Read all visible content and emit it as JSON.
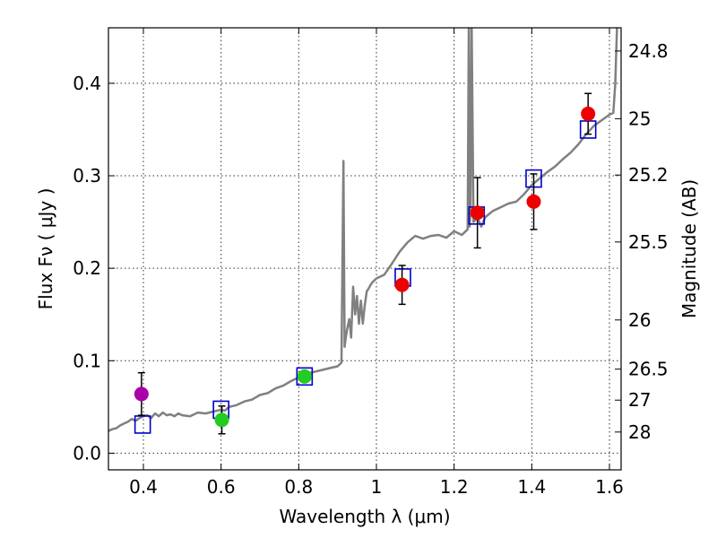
{
  "chart_data": {
    "type": "scatter",
    "title": "",
    "xlabel": "Wavelength  λ (μm)",
    "ylabel": "Flux  Fν  ( μJy )",
    "ylabel_right": "Magnitude (AB)",
    "xlim": [
      0.31,
      1.63
    ],
    "ylim": [
      -0.018,
      0.46
    ],
    "grid": true,
    "x_ticks": [
      0.4,
      0.6,
      0.8,
      1.0,
      1.2,
      1.4,
      1.6
    ],
    "x_tick_labels": [
      "0.4",
      "0.6",
      "0.8",
      "1",
      "1.2",
      "1.4",
      "1.6"
    ],
    "y_ticks": [
      0.0,
      0.1,
      0.2,
      0.3,
      0.4
    ],
    "y_tick_labels": [
      "0.0",
      "0.1",
      "0.2",
      "0.3",
      "0.4"
    ],
    "right_ticks": [
      {
        "label": "24.8",
        "flux": 0.4349
      },
      {
        "label": "25",
        "flux": 0.3617
      },
      {
        "label": "25.2",
        "flux": 0.3008
      },
      {
        "label": "25.5",
        "flux": 0.2284
      },
      {
        "label": "26",
        "flux": 0.1441
      },
      {
        "label": "26.5",
        "flux": 0.0909
      },
      {
        "label": "27",
        "flux": 0.0574
      },
      {
        "label": "28",
        "flux": 0.0229
      }
    ],
    "colors": {
      "sed": "#808080",
      "model": "#0000cc",
      "observed_red": "#ee0000",
      "observed_green": "#22cc22",
      "observed_purple": "#aa00aa",
      "errorbar": "#000000"
    },
    "sed_spectrum": {
      "x": [
        0.31,
        0.32,
        0.33,
        0.34,
        0.35,
        0.36,
        0.37,
        0.38,
        0.39,
        0.4,
        0.41,
        0.42,
        0.43,
        0.44,
        0.45,
        0.46,
        0.47,
        0.48,
        0.49,
        0.5,
        0.52,
        0.54,
        0.56,
        0.58,
        0.6,
        0.61,
        0.62,
        0.64,
        0.66,
        0.68,
        0.7,
        0.72,
        0.74,
        0.76,
        0.78,
        0.8,
        0.82,
        0.84,
        0.86,
        0.88,
        0.9,
        0.91,
        0.915,
        0.918,
        0.921,
        0.925,
        0.93,
        0.935,
        0.94,
        0.945,
        0.95,
        0.955,
        0.96,
        0.965,
        0.97,
        0.975,
        0.98,
        0.985,
        0.99,
        1.0,
        1.02,
        1.04,
        1.06,
        1.08,
        1.1,
        1.12,
        1.14,
        1.16,
        1.18,
        1.2,
        1.22,
        1.235,
        1.238,
        1.24,
        1.242,
        1.245,
        1.25,
        1.26,
        1.27,
        1.28,
        1.3,
        1.32,
        1.34,
        1.36,
        1.38,
        1.4,
        1.42,
        1.44,
        1.46,
        1.48,
        1.5,
        1.52,
        1.54,
        1.56,
        1.58,
        1.6,
        1.61,
        1.615,
        1.62
      ],
      "y": [
        0.024,
        0.026,
        0.027,
        0.03,
        0.032,
        0.034,
        0.037,
        0.035,
        0.038,
        0.04,
        0.041,
        0.038,
        0.043,
        0.04,
        0.044,
        0.041,
        0.042,
        0.04,
        0.043,
        0.041,
        0.04,
        0.044,
        0.043,
        0.045,
        0.047,
        0.046,
        0.05,
        0.052,
        0.056,
        0.058,
        0.063,
        0.065,
        0.07,
        0.073,
        0.078,
        0.082,
        0.086,
        0.088,
        0.09,
        0.092,
        0.094,
        0.098,
        0.316,
        0.115,
        0.125,
        0.135,
        0.145,
        0.125,
        0.18,
        0.15,
        0.17,
        0.14,
        0.165,
        0.14,
        0.16,
        0.175,
        0.178,
        0.182,
        0.185,
        0.189,
        0.193,
        0.205,
        0.218,
        0.228,
        0.235,
        0.232,
        0.235,
        0.236,
        0.233,
        0.24,
        0.236,
        0.242,
        0.47,
        0.245,
        0.26,
        0.47,
        0.25,
        0.255,
        0.245,
        0.255,
        0.262,
        0.266,
        0.27,
        0.272,
        0.28,
        0.29,
        0.297,
        0.304,
        0.31,
        0.318,
        0.325,
        0.334,
        0.345,
        0.354,
        0.36,
        0.366,
        0.368,
        0.4,
        0.47
      ]
    },
    "model_points": {
      "x": [
        0.398,
        0.6,
        0.815,
        1.068,
        1.258,
        1.405,
        1.545
      ],
      "y": [
        0.031,
        0.047,
        0.083,
        0.19,
        0.257,
        0.297,
        0.35
      ]
    },
    "observed_points": [
      {
        "x": 0.395,
        "y": 0.064,
        "err": 0.023,
        "color": "observed_purple"
      },
      {
        "x": 0.602,
        "y": 0.036,
        "err": 0.015,
        "color": "observed_green"
      },
      {
        "x": 0.815,
        "y": 0.083,
        "err": 0.0,
        "color": "observed_green"
      },
      {
        "x": 1.066,
        "y": 0.182,
        "err": 0.021,
        "color": "observed_red"
      },
      {
        "x": 1.26,
        "y": 0.26,
        "err": 0.038,
        "color": "observed_red"
      },
      {
        "x": 1.405,
        "y": 0.272,
        "err": 0.03,
        "color": "observed_red"
      },
      {
        "x": 1.545,
        "y": 0.367,
        "err": 0.022,
        "color": "observed_red"
      }
    ]
  }
}
